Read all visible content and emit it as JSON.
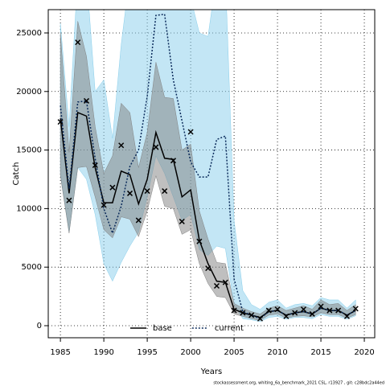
{
  "chart_data": {
    "type": "line",
    "x_label": "Years",
    "y_label": "Catch",
    "footer": "stockassessment.org, whiting_6a_benchmark_2021 CSL, r13927 , git: c28bdc2a44ed",
    "x": [
      1985,
      1986,
      1987,
      1988,
      1989,
      1990,
      1991,
      1992,
      1993,
      1994,
      1995,
      1996,
      1997,
      1998,
      1999,
      2000,
      2001,
      2002,
      2003,
      2004,
      2005,
      2006,
      2007,
      2008,
      2009,
      2010,
      2011,
      2012,
      2013,
      2014,
      2015,
      2016,
      2017,
      2018,
      2019
    ],
    "xlim": [
      1983.6,
      2021.2
    ],
    "xticks": [
      1985,
      1990,
      1995,
      2000,
      2005,
      2010,
      2015,
      2020
    ],
    "ylim": [
      -1030,
      26990
    ],
    "yticks": [
      0,
      5000,
      10000,
      15000,
      20000,
      25000
    ],
    "grid": true,
    "legend": "bottom",
    "series": [
      {
        "name": "base",
        "color": "#000000",
        "band_color": "#808080",
        "dash": false,
        "values": [
          17700,
          11300,
          18200,
          17900,
          13500,
          10500,
          10500,
          13200,
          12900,
          10400,
          12500,
          16500,
          14300,
          14200,
          11000,
          11600,
          7300,
          5300,
          3800,
          3700,
          1400,
          1100,
          900,
          700,
          1200,
          1300,
          900,
          1100,
          1200,
          1000,
          1500,
          1300,
          1300,
          900,
          1300
        ],
        "lower": [
          12800,
          7900,
          13500,
          13600,
          11000,
          8200,
          7500,
          9300,
          9100,
          7600,
          9800,
          12800,
          10200,
          10000,
          7800,
          8200,
          5300,
          3600,
          2500,
          2400,
          1000,
          800,
          600,
          450,
          900,
          1000,
          650,
          800,
          850,
          750,
          1100,
          950,
          950,
          650,
          950
        ],
        "upper": [
          25000,
          14800,
          26000,
          23000,
          17000,
          13000,
          14500,
          19000,
          18200,
          13500,
          16500,
          22500,
          19500,
          19400,
          15000,
          15500,
          9800,
          7400,
          5400,
          5300,
          1900,
          1500,
          1200,
          1000,
          1500,
          1700,
          1300,
          1500,
          1700,
          1400,
          2200,
          1800,
          1900,
          1300,
          1800
        ]
      },
      {
        "name": "current",
        "color": "#0a2a5a",
        "band_color": "#87ceeb",
        "dash": true,
        "values": [
          18800,
          11700,
          19100,
          19200,
          14300,
          10000,
          7900,
          10200,
          13600,
          15000,
          19600,
          26500,
          26600,
          21000,
          17500,
          14000,
          12700,
          12700,
          15900,
          16200,
          4000,
          1200,
          900,
          600,
          1200,
          1300,
          900,
          1100,
          1200,
          1000,
          1500,
          1300,
          1300,
          900,
          1300
        ],
        "lower": [
          13000,
          8000,
          13500,
          12500,
          9500,
          5300,
          3800,
          5400,
          6800,
          8000,
          11000,
          14500,
          13000,
          11000,
          9000,
          9500,
          6500,
          6000,
          6800,
          6600,
          1800,
          600,
          500,
          350,
          700,
          800,
          550,
          700,
          700,
          600,
          950,
          800,
          800,
          550,
          850
        ],
        "upper": [
          25800,
          17000,
          30000,
          30000,
          20000,
          21000,
          16000,
          24000,
          30000,
          30000,
          30000,
          30000,
          30000,
          30000,
          30000,
          28000,
          25000,
          24700,
          30000,
          30000,
          9000,
          3000,
          1800,
          1400,
          2000,
          2200,
          1500,
          1800,
          1900,
          1700,
          2400,
          2200,
          2200,
          1500,
          2200
        ]
      }
    ],
    "observations": {
      "color": "#000000",
      "values": [
        17400,
        10700,
        24200,
        19200,
        13700,
        10300,
        11800,
        15400,
        11300,
        9000,
        11500,
        15250,
        11500,
        14100,
        8900,
        16550,
        7200,
        4900,
        3400,
        3700,
        1300,
        1100,
        900,
        600,
        1300,
        1400,
        800,
        1100,
        1400,
        1000,
        1650,
        1300,
        1300,
        800,
        1450
      ]
    }
  }
}
